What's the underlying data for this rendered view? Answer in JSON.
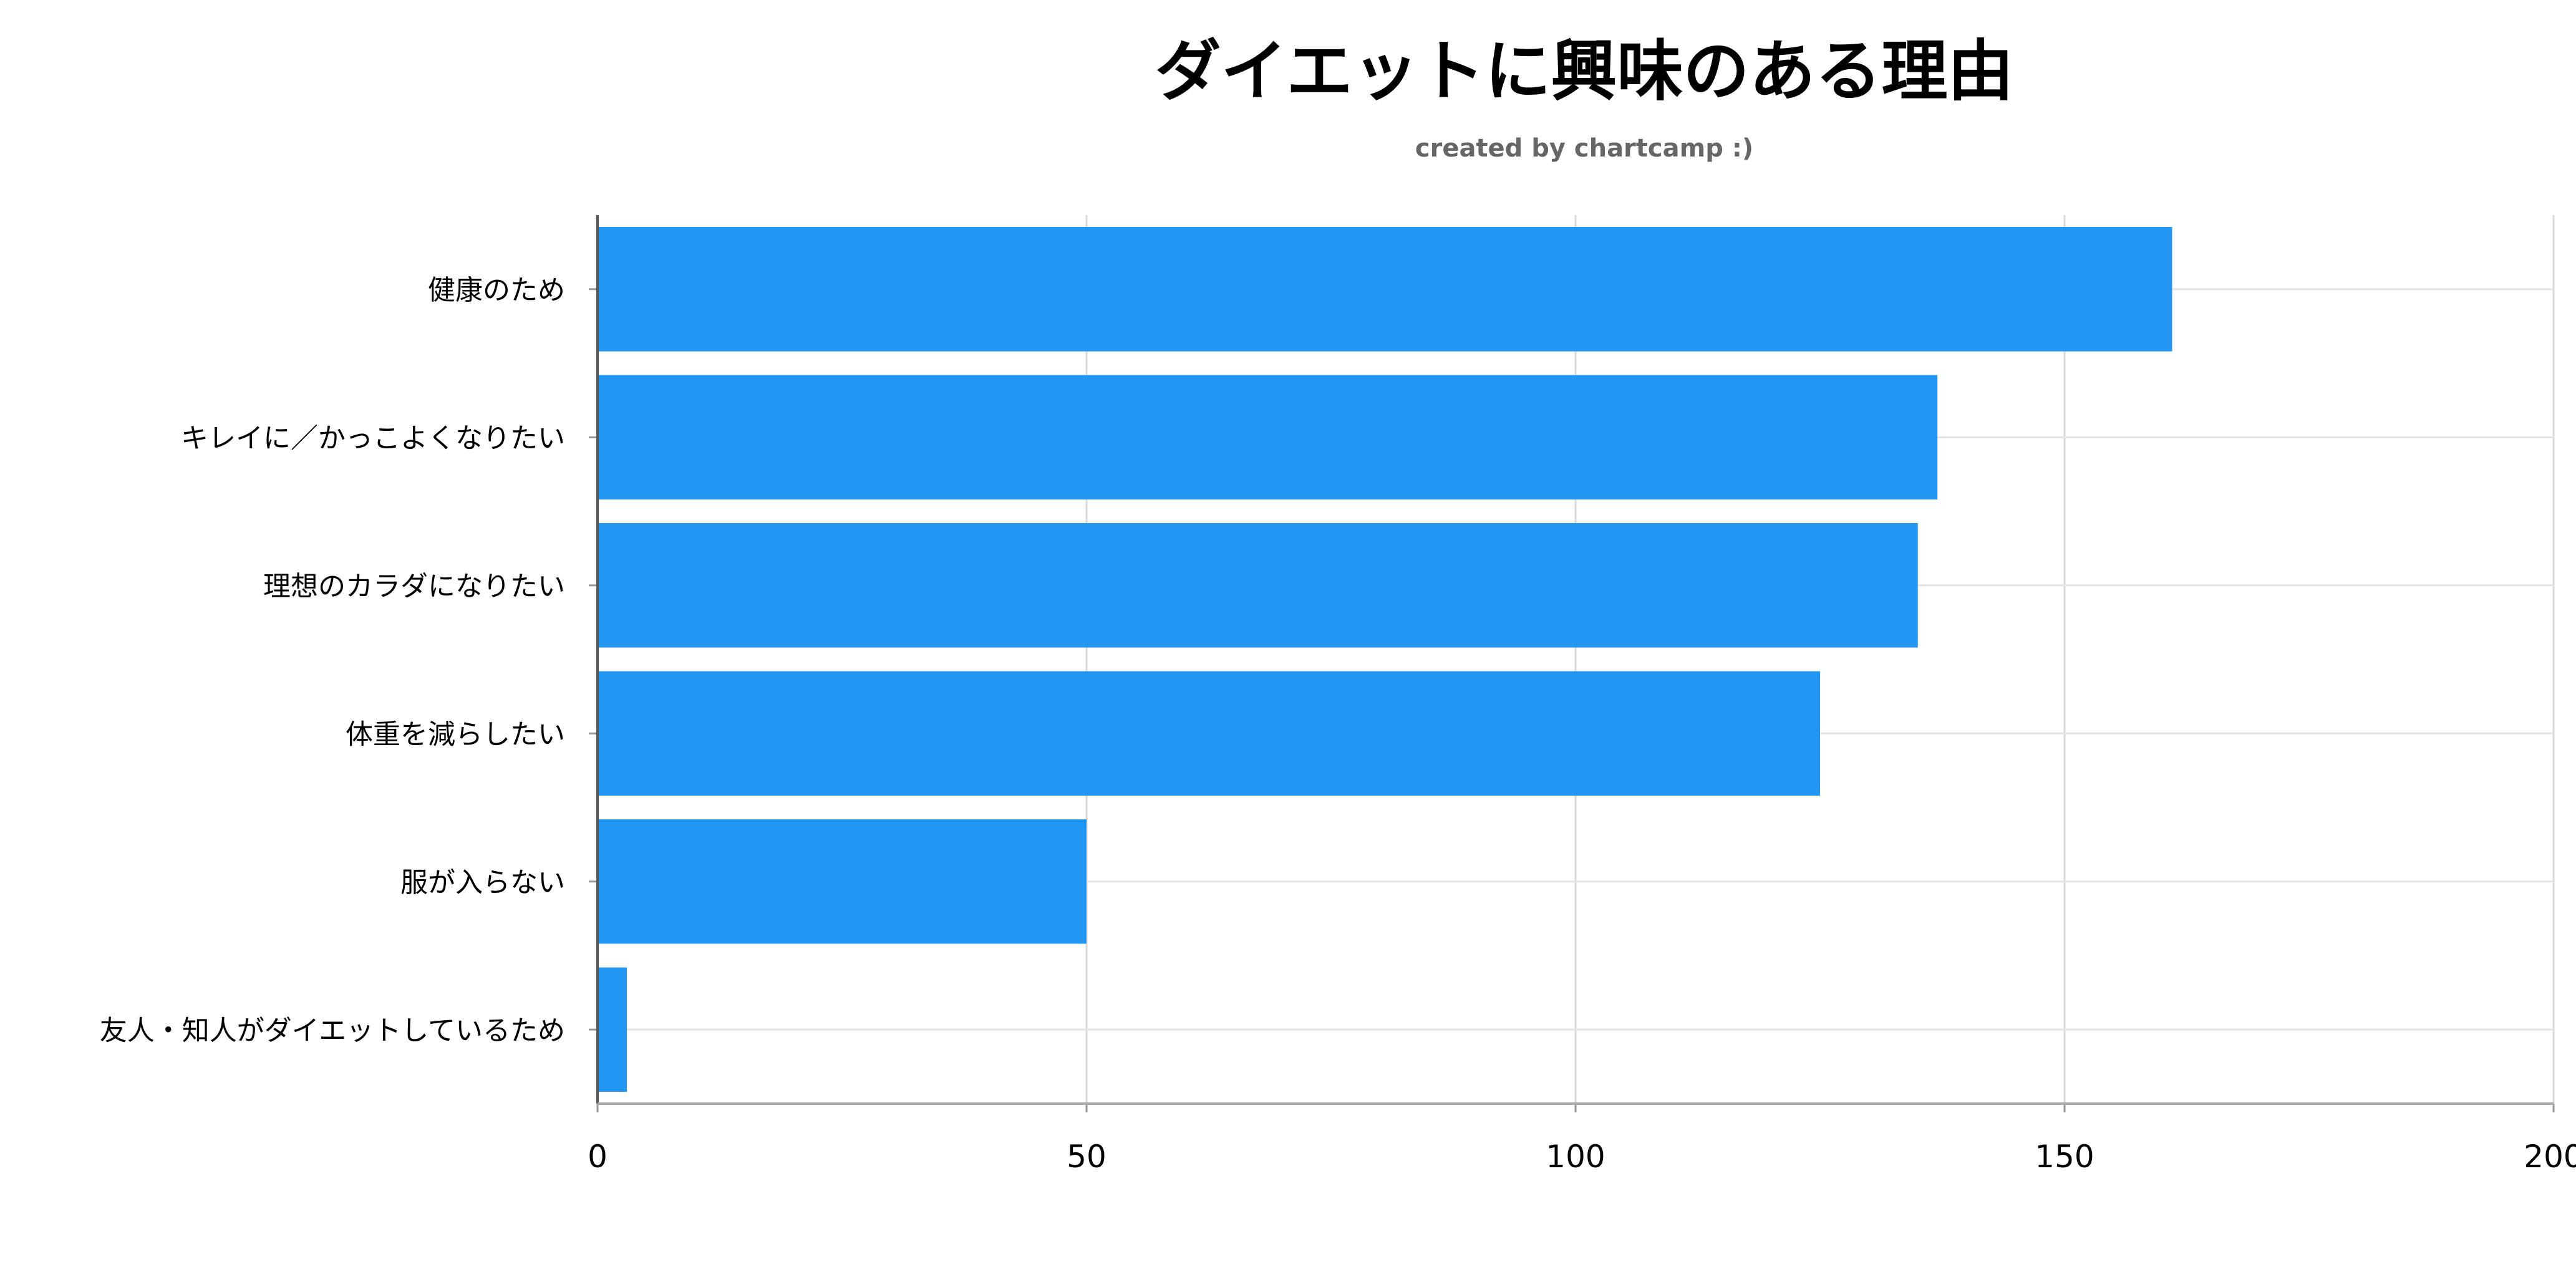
{
  "chart_data": {
    "type": "bar",
    "orientation": "horizontal",
    "title": "ダイエットに興味のある理由",
    "subtitle": "created by chartcamp :)",
    "categories": [
      "健康のため",
      "キレイに／かっこよくなりたい",
      "理想のカラダになりたい",
      "体重を減らしたい",
      "服が入らない",
      "友人・知人がダイエットしているため"
    ],
    "values": [
      161,
      137,
      135,
      125,
      50,
      3
    ],
    "xlim": [
      0,
      200
    ],
    "xticks": [
      0,
      50,
      100,
      150,
      200
    ],
    "grid": true,
    "bar_color": "#2196F3",
    "xlabel": "",
    "ylabel": ""
  }
}
